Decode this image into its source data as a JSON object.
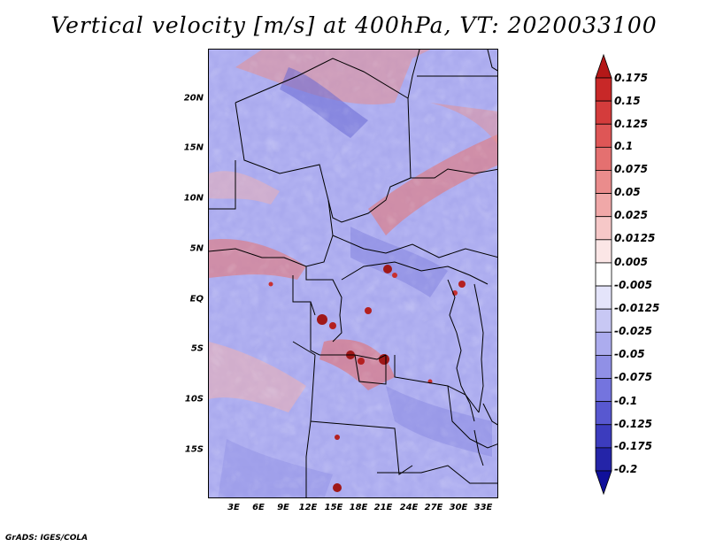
{
  "title": "Vertical velocity [m/s] at 400hPa, VT: 2020033100",
  "credit": "GrADS: IGES/COLA",
  "lat_labels": [
    "20N",
    "15N",
    "10N",
    "5N",
    "EQ",
    "5S",
    "10S",
    "15S"
  ],
  "lon_labels": [
    "3E",
    "6E",
    "9E",
    "12E",
    "15E",
    "18E",
    "21E",
    "24E",
    "27E",
    "30E",
    "33E"
  ],
  "colorbar": {
    "labels": [
      "0.175",
      "0.15",
      "0.125",
      "0.1",
      "0.075",
      "0.05",
      "0.025",
      "0.0125",
      "0.005",
      "-0.005",
      "-0.0125",
      "-0.025",
      "-0.05",
      "-0.075",
      "-0.1",
      "-0.125",
      "-0.175",
      "-0.2"
    ],
    "colors": [
      "#b41818",
      "#c82828",
      "#d43c3c",
      "#de5656",
      "#e47070",
      "#ea8c8c",
      "#f0a8a8",
      "#f6c8c8",
      "#fbe6e6",
      "#ffffff",
      "#e4e4fa",
      "#c8c8f4",
      "#acacee",
      "#9090e6",
      "#7474de",
      "#5858d0",
      "#3c3cbe",
      "#2424a8",
      "#10109a"
    ]
  }
}
